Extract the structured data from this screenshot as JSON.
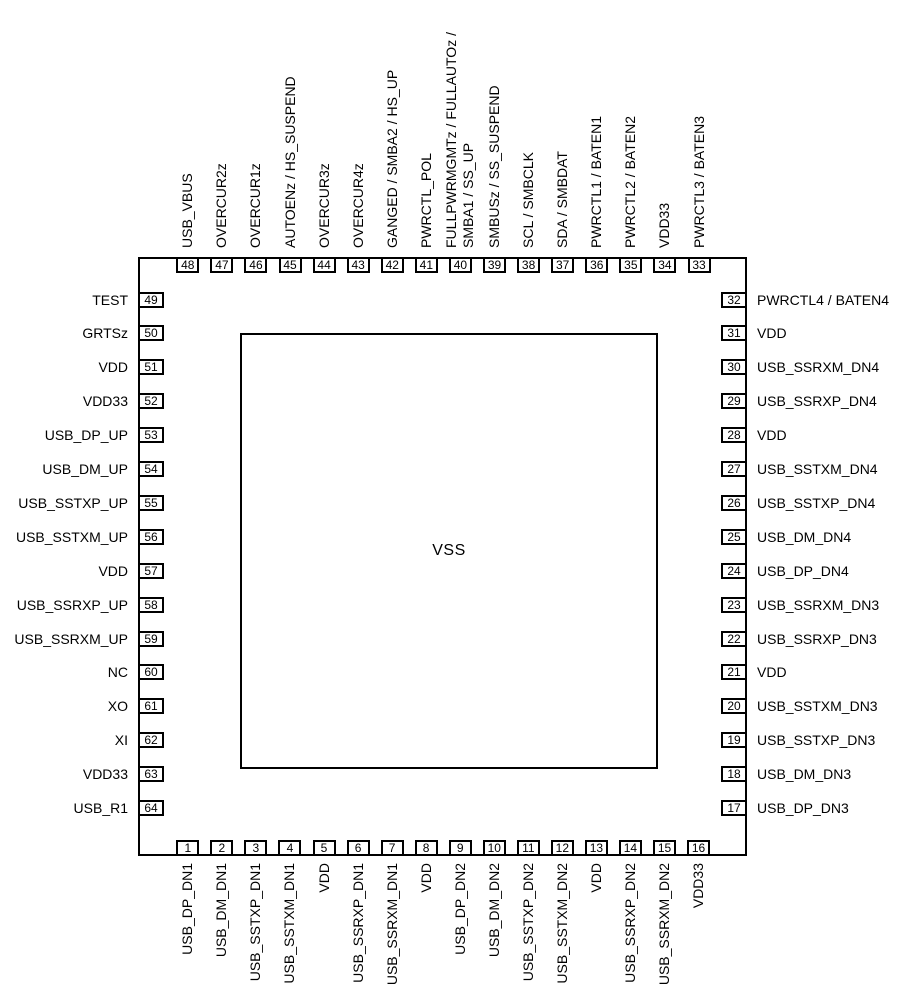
{
  "diagram": {
    "center_pad_label": "VSS"
  },
  "colors": {
    "line": "#000000",
    "text": "#000000",
    "background": "#ffffff"
  },
  "pins": {
    "top": [
      {
        "num": "48",
        "label": "USB_VBUS"
      },
      {
        "num": "47",
        "label": "OVERCUR2z"
      },
      {
        "num": "46",
        "label": "OVERCUR1z"
      },
      {
        "num": "45",
        "label": "AUTOENz / HS_SUSPEND"
      },
      {
        "num": "44",
        "label": "OVERCUR3z"
      },
      {
        "num": "43",
        "label": "OVERCUR4z"
      },
      {
        "num": "42",
        "label": "GANGED / SMBA2 / HS_UP"
      },
      {
        "num": "41",
        "label": "PWRCTL_POL"
      },
      {
        "num": "40",
        "label": "FULLPWRMGMTz / FULLAUTOz /\nSMBA1 / SS_UP"
      },
      {
        "num": "39",
        "label": "SMBUSz / SS_SUSPEND"
      },
      {
        "num": "38",
        "label": "SCL / SMBCLK"
      },
      {
        "num": "37",
        "label": "SDA / SMBDAT"
      },
      {
        "num": "36",
        "label": "PWRCTL1 / BATEN1"
      },
      {
        "num": "35",
        "label": "PWRCTL2 / BATEN2"
      },
      {
        "num": "34",
        "label": "VDD33"
      },
      {
        "num": "33",
        "label": "PWRCTL3 / BATEN3"
      }
    ],
    "left": [
      {
        "num": "49",
        "label": "TEST"
      },
      {
        "num": "50",
        "label": "GRTSz"
      },
      {
        "num": "51",
        "label": "VDD"
      },
      {
        "num": "52",
        "label": "VDD33"
      },
      {
        "num": "53",
        "label": "USB_DP_UP"
      },
      {
        "num": "54",
        "label": "USB_DM_UP"
      },
      {
        "num": "55",
        "label": "USB_SSTXP_UP"
      },
      {
        "num": "56",
        "label": "USB_SSTXM_UP"
      },
      {
        "num": "57",
        "label": "VDD"
      },
      {
        "num": "58",
        "label": "USB_SSRXP_UP"
      },
      {
        "num": "59",
        "label": "USB_SSRXM_UP"
      },
      {
        "num": "60",
        "label": "NC"
      },
      {
        "num": "61",
        "label": "XO"
      },
      {
        "num": "62",
        "label": "XI"
      },
      {
        "num": "63",
        "label": "VDD33"
      },
      {
        "num": "64",
        "label": "USB_R1"
      }
    ],
    "right": [
      {
        "num": "32",
        "label": "PWRCTL4 / BATEN4"
      },
      {
        "num": "31",
        "label": "VDD"
      },
      {
        "num": "30",
        "label": "USB_SSRXM_DN4"
      },
      {
        "num": "29",
        "label": "USB_SSRXP_DN4"
      },
      {
        "num": "28",
        "label": "VDD"
      },
      {
        "num": "27",
        "label": "USB_SSTXM_DN4"
      },
      {
        "num": "26",
        "label": "USB_SSTXP_DN4"
      },
      {
        "num": "25",
        "label": "USB_DM_DN4"
      },
      {
        "num": "24",
        "label": "USB_DP_DN4"
      },
      {
        "num": "23",
        "label": "USB_SSRXM_DN3"
      },
      {
        "num": "22",
        "label": "USB_SSRXP_DN3"
      },
      {
        "num": "21",
        "label": "VDD"
      },
      {
        "num": "20",
        "label": "USB_SSTXM_DN3"
      },
      {
        "num": "19",
        "label": "USB_SSTXP_DN3"
      },
      {
        "num": "18",
        "label": "USB_DM_DN3"
      },
      {
        "num": "17",
        "label": "USB_DP_DN3"
      }
    ],
    "bottom": [
      {
        "num": "1",
        "label": "USB_DP_DN1"
      },
      {
        "num": "2",
        "label": "USB_DM_DN1"
      },
      {
        "num": "3",
        "label": "USB_SSTXP_DN1"
      },
      {
        "num": "4",
        "label": "USB_SSTXM_DN1"
      },
      {
        "num": "5",
        "label": "VDD"
      },
      {
        "num": "6",
        "label": "USB_SSRXP_DN1"
      },
      {
        "num": "7",
        "label": "USB_SSRXM_DN1"
      },
      {
        "num": "8",
        "label": "VDD"
      },
      {
        "num": "9",
        "label": "USB_DP_DN2"
      },
      {
        "num": "10",
        "label": "USB_DM_DN2"
      },
      {
        "num": "11",
        "label": "USB_SSTXP_DN2"
      },
      {
        "num": "12",
        "label": "USB_SSTXM_DN2"
      },
      {
        "num": "13",
        "label": "VDD"
      },
      {
        "num": "14",
        "label": "USB_SSRXP_DN2"
      },
      {
        "num": "15",
        "label": "USB_SSRXM_DN2"
      },
      {
        "num": "16",
        "label": "VDD33"
      }
    ]
  }
}
